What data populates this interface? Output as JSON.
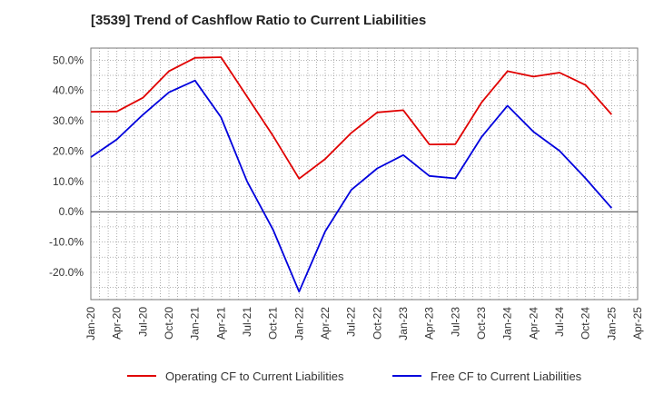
{
  "chart_data": {
    "type": "line",
    "title": "[3539]  Trend of Cashflow Ratio to Current Liabilities",
    "xlabel": "",
    "ylabel": "",
    "x": [
      "Jan-20",
      "Apr-20",
      "Jul-20",
      "Oct-20",
      "Jan-21",
      "Apr-21",
      "Jul-21",
      "Oct-21",
      "Jan-22",
      "Apr-22",
      "Jul-22",
      "Oct-22",
      "Jan-23",
      "Apr-23",
      "Jul-23",
      "Oct-23",
      "Jan-24",
      "Apr-24",
      "Jul-24",
      "Oct-24",
      "Jan-25"
    ],
    "x_ticks": [
      "Jan-20",
      "Apr-20",
      "Jul-20",
      "Oct-20",
      "Jan-21",
      "Apr-21",
      "Jul-21",
      "Oct-21",
      "Jan-22",
      "Apr-22",
      "Jul-22",
      "Oct-22",
      "Jan-23",
      "Apr-23",
      "Jul-23",
      "Oct-23",
      "Jan-24",
      "Apr-24",
      "Jul-24",
      "Oct-24",
      "Jan-25",
      "Apr-25"
    ],
    "y_ticks": [
      "50.0%",
      "40.0%",
      "30.0%",
      "20.0%",
      "10.0%",
      "0.0%",
      "-10.0%",
      "-20.0%"
    ],
    "y_tick_values": [
      50,
      40,
      30,
      20,
      10,
      0,
      -10,
      -20
    ],
    "ylim": [
      -29,
      54
    ],
    "grid": true,
    "legend_position": "bottom",
    "series": [
      {
        "name": "Operating CF to Current Liabilities",
        "color": "#e00000",
        "values": [
          33.0,
          33.1,
          37.6,
          46.4,
          50.8,
          51.0,
          38.0,
          25.0,
          10.9,
          17.4,
          26.0,
          32.8,
          33.5,
          22.2,
          22.3,
          36.0,
          46.4,
          44.6,
          45.9,
          41.8,
          32.1
        ]
      },
      {
        "name": "Free CF to Current Liabilities",
        "color": "#0000dd",
        "values": [
          18.0,
          23.9,
          32.0,
          39.4,
          43.3,
          31.2,
          10.0,
          -6.0,
          -26.4,
          -6.5,
          7.2,
          14.3,
          18.7,
          11.8,
          11.0,
          24.6,
          35.0,
          26.4,
          20.1,
          11.0,
          1.2
        ]
      }
    ]
  }
}
